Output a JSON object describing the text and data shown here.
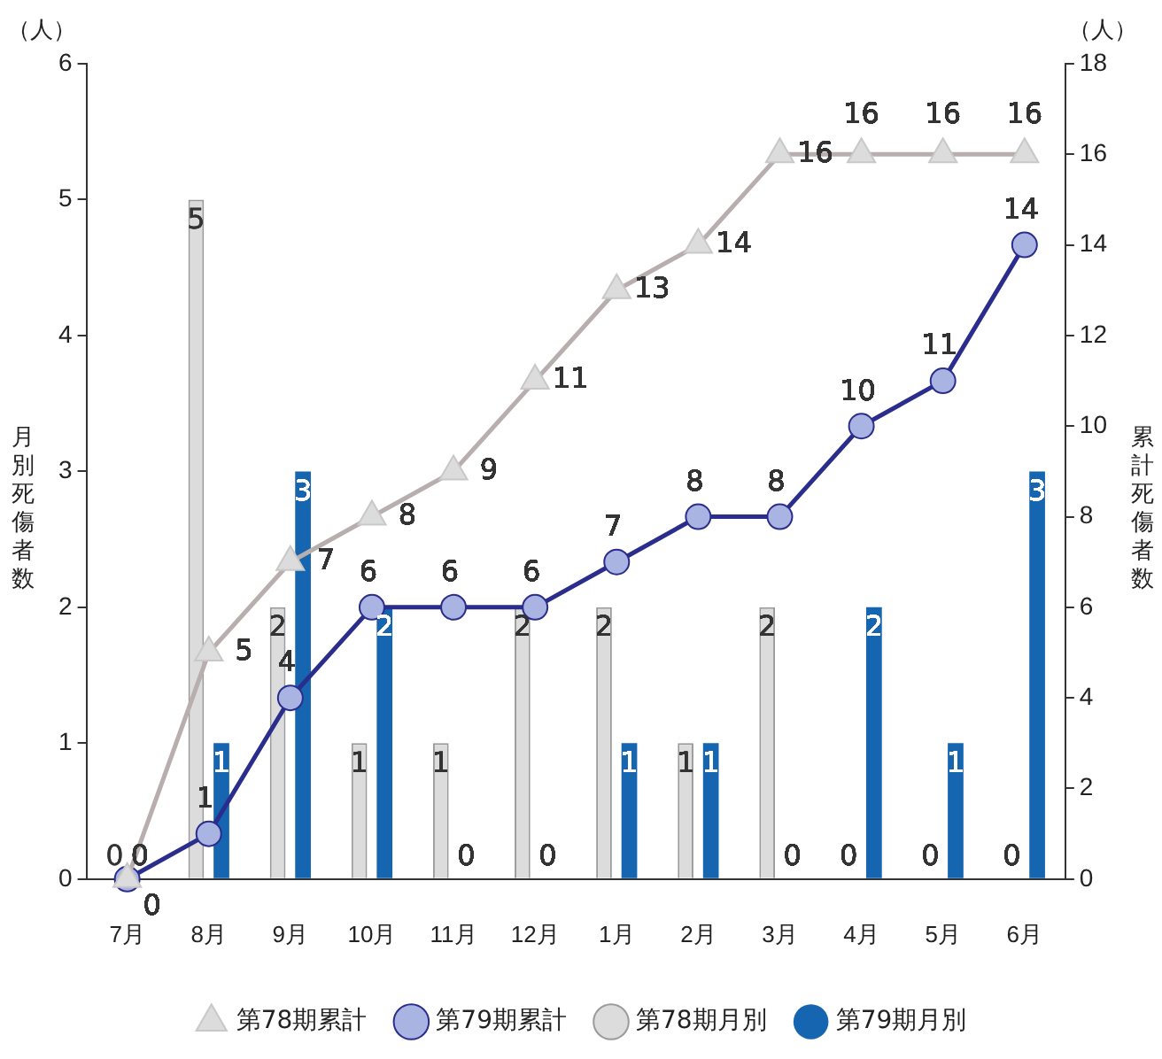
{
  "chart_data": {
    "type": "bar",
    "ylabel": "月別死傷者数",
    "y2label": "累計死傷者数",
    "annotations": [
      "（人）",
      "（人）"
    ],
    "categories": [
      "7月",
      "8月",
      "9月",
      "10月",
      "11月",
      "12月",
      "1月",
      "2月",
      "3月",
      "4月",
      "5月",
      "6月"
    ],
    "series": [
      {
        "name": "第78期月別",
        "color": "#dcdcdc",
        "values": [
          0,
          5,
          2,
          1,
          1,
          2,
          2,
          1,
          2,
          0,
          0,
          0
        ]
      },
      {
        "name": "第79期月別",
        "color": "#1565b0",
        "values": [
          0,
          1,
          3,
          2,
          0,
          0,
          1,
          1,
          0,
          2,
          1,
          3
        ]
      },
      {
        "name": "第78期累計",
        "type": "line",
        "axis": "y2",
        "marker": "triangle",
        "color": "#b8aeae",
        "values": [
          0,
          5,
          7,
          8,
          9,
          11,
          13,
          14,
          16,
          16,
          16,
          16
        ],
        "value_labels": [
          null,
          "5",
          "7",
          "8",
          "9",
          "11",
          "13",
          "14",
          "16",
          "16",
          "16",
          "16"
        ]
      },
      {
        "name": "第79期累計",
        "type": "line",
        "axis": "y2",
        "marker": "circle",
        "color": "#2b2d8c",
        "values": [
          0,
          1,
          4,
          6,
          6,
          6,
          7,
          8,
          8,
          10,
          11,
          14
        ]
      }
    ],
    "ylim": [
      0,
      6
    ],
    "yticks": [
      0,
      1,
      2,
      3,
      4,
      5,
      6
    ],
    "y2lim": [
      0,
      18
    ],
    "y2ticks": [
      0,
      2,
      4,
      6,
      8,
      10,
      12,
      14,
      16,
      18
    ],
    "grid": false,
    "legend": "bottom",
    "data_labels": true
  }
}
